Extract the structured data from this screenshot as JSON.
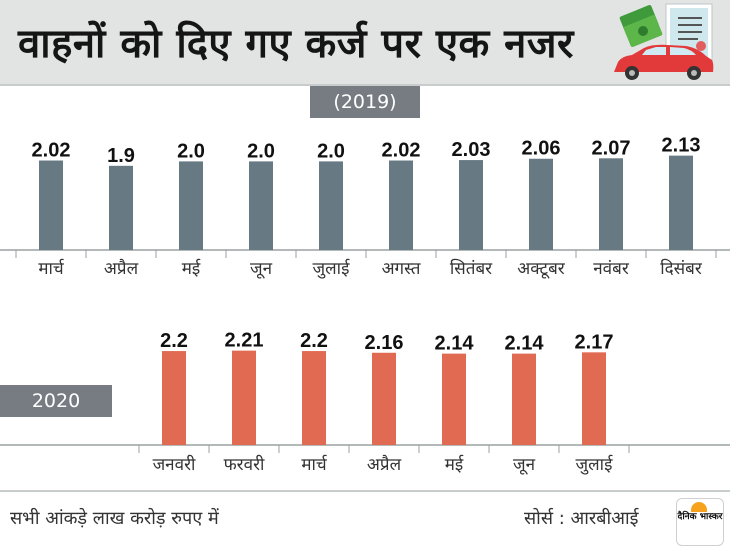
{
  "header": {
    "title": "वाहनों को दिए गए कर्ज पर एक नजर"
  },
  "icons": {
    "header_art": [
      "money-icon",
      "document-icon",
      "car-icon"
    ]
  },
  "colors": {
    "bar_2019": "#677a84",
    "bar_2020": "#e16a52",
    "tag_bg": "#777c82",
    "header_bg": "#e2e4e4"
  },
  "chart_data": [
    {
      "type": "bar",
      "title": "(2019)",
      "categories": [
        "मार्च",
        "अप्रैल",
        "मई",
        "जून",
        "जुलाई",
        "अगस्त",
        "सितंबर",
        "अक्टूबर",
        "नवंबर",
        "दिसंबर"
      ],
      "values": [
        2.02,
        1.9,
        2.0,
        2.0,
        2.0,
        2.02,
        2.03,
        2.06,
        2.07,
        2.13
      ],
      "labels": [
        "2.02",
        "1.9",
        "2.0",
        "2.0",
        "2.0",
        "2.02",
        "2.03",
        "2.06",
        "2.07",
        "2.13"
      ],
      "color": "#677a84",
      "grid": false
    },
    {
      "type": "bar",
      "title": "2020",
      "categories": [
        "जनवरी",
        "फरवरी",
        "मार्च",
        "अप्रैल",
        "मई",
        "जून",
        "जुलाई"
      ],
      "values": [
        2.2,
        2.21,
        2.2,
        2.16,
        2.14,
        2.14,
        2.17
      ],
      "labels": [
        "2.2",
        "2.21",
        "2.2",
        "2.16",
        "2.14",
        "2.14",
        "2.17"
      ],
      "color": "#e16a52",
      "grid": false
    }
  ],
  "footer": {
    "note": "सभी आंकड़े लाख करोड़ रुपए में",
    "source": "सोर्स : आरबीआई",
    "logo_text": "दैनिक भास्कर"
  }
}
